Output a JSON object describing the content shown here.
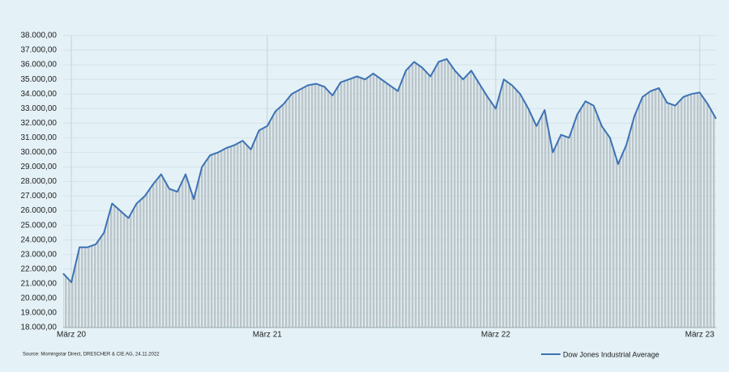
{
  "chart_data": {
    "type": "line",
    "source": "Source: Morningstar Direct, DRESCHER & CIE AG, 24.11.2022",
    "categories": [
      null,
      "März 20",
      null,
      null,
      null,
      null,
      null,
      null,
      null,
      null,
      null,
      null,
      null,
      null,
      null,
      null,
      null,
      null,
      null,
      null,
      null,
      null,
      null,
      null,
      null,
      "März 21",
      null,
      null,
      null,
      null,
      null,
      null,
      null,
      null,
      null,
      null,
      null,
      null,
      null,
      null,
      null,
      null,
      null,
      null,
      null,
      null,
      null,
      null,
      null,
      null,
      null,
      null,
      null,
      "März 22",
      null,
      null,
      null,
      null,
      null,
      null,
      null,
      null,
      null,
      null,
      null,
      null,
      null,
      null,
      null,
      null,
      null,
      null,
      null,
      null,
      null,
      null,
      null,
      null,
      "März 23",
      null,
      null
    ],
    "series": [
      {
        "name": "Dow Jones Industrial Average",
        "color": "#3d72b4",
        "values": [
          21700,
          21100,
          23500,
          23500,
          23700,
          24500,
          26500,
          26000,
          25500,
          26500,
          27000,
          27800,
          28500,
          27500,
          27300,
          28500,
          26800,
          29000,
          29800,
          30000,
          30300,
          30500,
          30800,
          30200,
          31500,
          31800,
          32800,
          33300,
          34000,
          34300,
          34600,
          34700,
          34500,
          33900,
          34800,
          35000,
          35200,
          35000,
          35400,
          35000,
          34600,
          34200,
          35600,
          36200,
          35800,
          35200,
          36200,
          36400,
          35600,
          35000,
          35600,
          34700,
          33800,
          33000,
          35000,
          34600,
          34000,
          33000,
          31800,
          32900,
          30000,
          31200,
          31000,
          32600,
          33500,
          33200,
          31800,
          31000,
          29200,
          30500,
          32500,
          33800,
          34200,
          34400,
          33400,
          33200,
          33800,
          34000,
          34100,
          33300,
          32300
        ]
      }
    ],
    "ylim": [
      18000,
      38000
    ],
    "yticks": [
      {
        "value": 18000,
        "label": "18.000,00"
      },
      {
        "value": 19000,
        "label": "19.000,00"
      },
      {
        "value": 20000,
        "label": "20.000,00"
      },
      {
        "value": 21000,
        "label": "21.000,00"
      },
      {
        "value": 22000,
        "label": "22.000,00"
      },
      {
        "value": 23000,
        "label": "23.000,00"
      },
      {
        "value": 24000,
        "label": "24.000,00"
      },
      {
        "value": 25000,
        "label": "25.000,00"
      },
      {
        "value": 26000,
        "label": "26.000,00"
      },
      {
        "value": 27000,
        "label": "27.000,00"
      },
      {
        "value": 28000,
        "label": "28.000,00"
      },
      {
        "value": 29000,
        "label": "29.000,00"
      },
      {
        "value": 30000,
        "label": "30.000,00"
      },
      {
        "value": 31000,
        "label": "31.000,00"
      },
      {
        "value": 32000,
        "label": "32.000,00"
      },
      {
        "value": 33000,
        "label": "33.000,00"
      },
      {
        "value": 34000,
        "label": "34.000,00"
      },
      {
        "value": 35000,
        "label": "35.000,00"
      },
      {
        "value": 36000,
        "label": "36.000,00"
      },
      {
        "value": 37000,
        "label": "37.000,00"
      },
      {
        "value": 38000,
        "label": "38.000,00"
      }
    ],
    "grid": true
  }
}
